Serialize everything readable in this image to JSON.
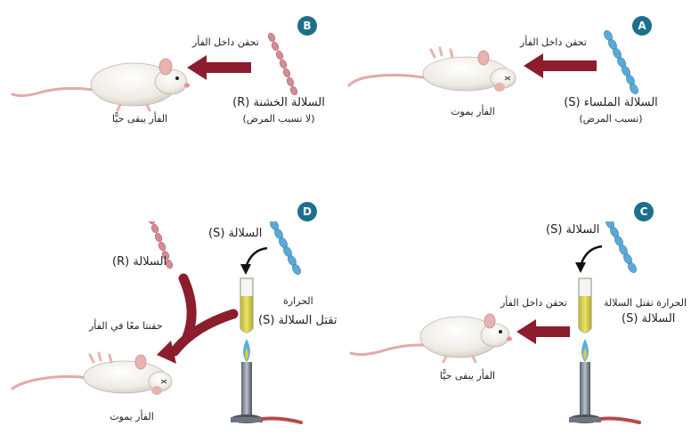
{
  "panels": {
    "a": {
      "badge": "A",
      "inject": "تحقن داخل الفأر",
      "strain_line1": "السلالة الملساء (S)",
      "strain_line2": "(تسبب المرض)",
      "result": "الفأر يموت"
    },
    "b": {
      "badge": "B",
      "inject": "تحقن داخل الفأر",
      "strain_line1": "السلالة الخشنة (R)",
      "strain_line2": "(لا تسبب المرض)",
      "result": "الفأر يبقى حيًّا"
    },
    "c": {
      "badge": "C",
      "strain": "السلالة (S)",
      "heat_line1": "الحرارة تقتل السلالة",
      "heat_line2": "السلالة (S)",
      "inject": "تحقن داخل الفأر",
      "result": "الفأر يبقى حيًّا"
    },
    "d": {
      "badge": "D",
      "strain_s": "السلالة (S)",
      "strain_r": "السلالة (R)",
      "heat_line1": "الحرارة",
      "heat_line2": "تقتل السلالة (S)",
      "inject": "حقنتا معًا في الفأر",
      "result": "الفأر يموت"
    }
  },
  "colors": {
    "badge": "#1d6f8c",
    "arrow": "#8b1d2c",
    "s_strain": "#5aa9d6",
    "r_strain": "#d48b93",
    "mouse": "#f3f0ea",
    "tail": "#e3a9a9",
    "liquid": "#d6d24a",
    "flame": "#4fb2e8"
  },
  "icons": [
    "bacteria-chain-icon",
    "mouse-icon",
    "arrow-icon",
    "test-tube-icon",
    "bunsen-burner-icon"
  ]
}
